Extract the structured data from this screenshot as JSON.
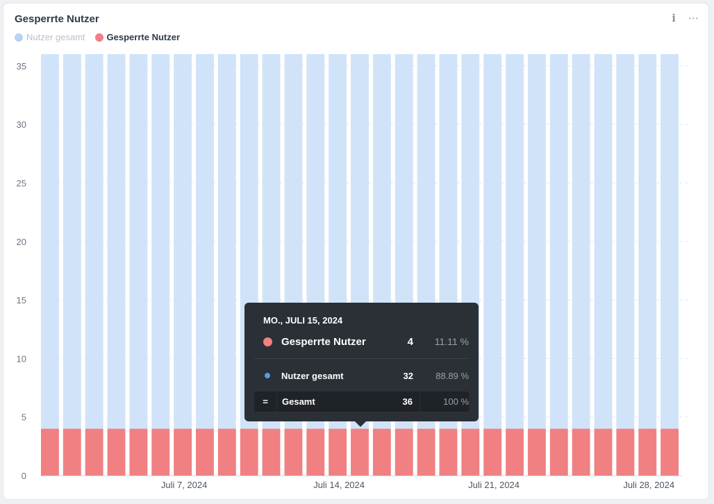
{
  "card": {
    "title": "Gesperrte Nutzer",
    "info_icon": "info-icon",
    "more_icon": "more-dots-icon"
  },
  "legend": [
    {
      "label": "Nutzer gesamt",
      "color": "#b7d3f1",
      "state": "muted"
    },
    {
      "label": "Gesperrte Nutzer",
      "color": "#f08082",
      "state": "active"
    }
  ],
  "tooltip": {
    "date": "MO., JULI 15, 2024",
    "primary": {
      "label": "Gesperrte Nutzer",
      "value": "4",
      "percent": "11.11 %",
      "color": "#f08082"
    },
    "secondary": {
      "label": "Nutzer gesamt",
      "value": "32",
      "percent": "88.89 %",
      "color": "#509ee3"
    },
    "total": {
      "symbol": "=",
      "label": "Gesamt",
      "value": "36",
      "percent": "100 %"
    }
  },
  "chart_data": {
    "type": "bar",
    "stacked": true,
    "categories": [
      "2024-07-01",
      "2024-07-02",
      "2024-07-03",
      "2024-07-04",
      "2024-07-05",
      "2024-07-06",
      "2024-07-07",
      "2024-07-08",
      "2024-07-09",
      "2024-07-10",
      "2024-07-11",
      "2024-07-12",
      "2024-07-13",
      "2024-07-14",
      "2024-07-15",
      "2024-07-16",
      "2024-07-17",
      "2024-07-18",
      "2024-07-19",
      "2024-07-20",
      "2024-07-21",
      "2024-07-22",
      "2024-07-23",
      "2024-07-24",
      "2024-07-25",
      "2024-07-26",
      "2024-07-27",
      "2024-07-28",
      "2024-07-29"
    ],
    "series": [
      {
        "name": "Gesperrte Nutzer",
        "color": "#f08082",
        "values": [
          4,
          4,
          4,
          4,
          4,
          4,
          4,
          4,
          4,
          4,
          4,
          4,
          4,
          4,
          4,
          4,
          4,
          4,
          4,
          4,
          4,
          4,
          4,
          4,
          4,
          4,
          4,
          4,
          4
        ]
      },
      {
        "name": "Nutzer gesamt",
        "color": "#d1e3f8",
        "values": [
          32,
          32,
          32,
          32,
          32,
          32,
          32,
          32,
          32,
          32,
          32,
          32,
          32,
          32,
          32,
          32,
          32,
          32,
          32,
          32,
          32,
          32,
          32,
          32,
          32,
          32,
          32,
          32,
          32
        ]
      }
    ],
    "x_tick_labels": [
      {
        "category": "2024-07-07",
        "label": "Juli 7, 2024"
      },
      {
        "category": "2024-07-14",
        "label": "Juli 14, 2024"
      },
      {
        "category": "2024-07-21",
        "label": "Juli 21, 2024"
      },
      {
        "category": "2024-07-28",
        "label": "Juli 28, 2024"
      }
    ],
    "y_ticks": [
      0,
      5,
      10,
      15,
      20,
      25,
      30,
      35
    ],
    "ylim": [
      0,
      36
    ],
    "grid": "horizontal dashed",
    "highlighted_category": "2024-07-15"
  }
}
